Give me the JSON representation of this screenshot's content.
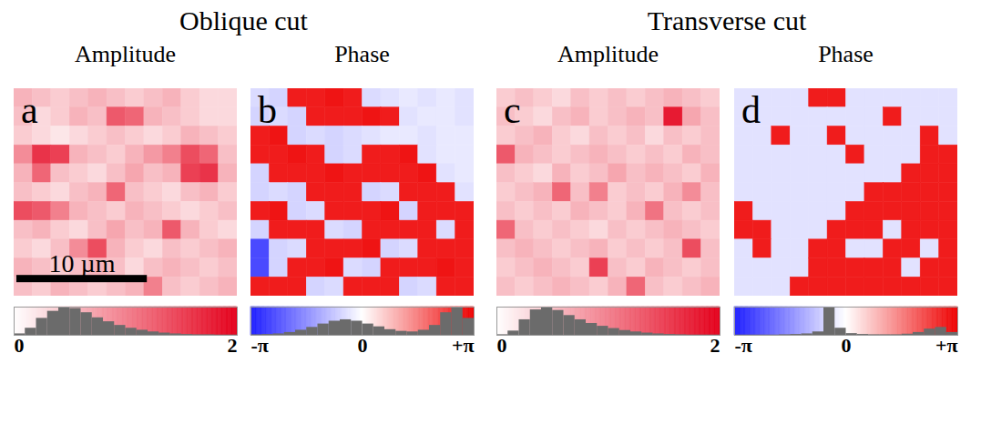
{
  "chart_data": [
    {
      "type": "heatmap",
      "group": "Oblique cut",
      "title": "Amplitude",
      "label": "a",
      "xlim": [
        0,
        17.1
      ],
      "ylim": [
        0,
        16.1
      ],
      "tick_labels": false,
      "scale_bar": {
        "value": 10,
        "label": "10 µm"
      },
      "cells": [
        [
          0.6,
          0.5,
          0.4,
          0.5,
          0.6,
          0.5,
          0.4,
          0.5,
          0.6,
          0.4,
          0.3,
          0.3
        ],
        [
          0.5,
          0.3,
          0.4,
          0.6,
          0.5,
          1.3,
          1.2,
          0.6,
          0.5,
          0.4,
          0.3,
          0.3
        ],
        [
          0.4,
          0.3,
          0.2,
          0.3,
          0.4,
          0.5,
          0.4,
          0.3,
          0.4,
          0.6,
          0.5,
          0.4
        ],
        [
          0.9,
          1.6,
          1.5,
          0.6,
          0.5,
          0.4,
          0.6,
          0.8,
          1.0,
          1.4,
          1.2,
          0.5
        ],
        [
          0.6,
          1.2,
          0.5,
          0.4,
          0.3,
          0.5,
          0.7,
          0.5,
          0.6,
          1.5,
          1.6,
          0.6
        ],
        [
          0.5,
          0.4,
          0.3,
          0.5,
          0.6,
          1.2,
          0.5,
          0.4,
          0.3,
          0.5,
          0.6,
          0.4
        ],
        [
          1.4,
          1.3,
          1.0,
          0.6,
          0.5,
          0.4,
          0.6,
          0.5,
          0.4,
          0.3,
          0.4,
          0.5
        ],
        [
          0.5,
          0.6,
          0.4,
          0.3,
          0.5,
          0.7,
          0.5,
          0.6,
          1.3,
          0.6,
          0.4,
          0.3
        ],
        [
          0.4,
          0.3,
          0.5,
          0.9,
          1.4,
          0.6,
          0.4,
          0.3,
          0.5,
          0.4,
          0.5,
          0.6
        ],
        [
          0.6,
          0.5,
          0.4,
          0.5,
          0.6,
          0.5,
          0.3,
          0.5,
          0.6,
          0.5,
          0.4,
          0.5
        ],
        [
          0.5,
          0.4,
          0.6,
          0.5,
          0.4,
          0.5,
          0.6,
          1.0,
          0.5,
          0.4,
          0.5,
          0.6
        ]
      ],
      "colorbar": {
        "range": [
          0,
          2
        ],
        "ticks": [
          0,
          2
        ],
        "bins": [
          0,
          0.1,
          0.2,
          0.3,
          0.4,
          0.5,
          0.6,
          0.7,
          0.8,
          0.9,
          1,
          1.1,
          1.2,
          1.3,
          1.4,
          1.5,
          1.6,
          1.7,
          1.8,
          1.9,
          2
        ],
        "counts": [
          5,
          25,
          60,
          85,
          100,
          95,
          80,
          62,
          48,
          35,
          25,
          18,
          12,
          8,
          5,
          3,
          2,
          2,
          1,
          1
        ]
      }
    },
    {
      "type": "heatmap",
      "group": "Oblique cut",
      "title": "Phase",
      "label": "b",
      "xlim": [
        0,
        17.1
      ],
      "ylim": [
        0,
        16.1
      ],
      "tick_labels": false,
      "cells": [
        [
          -0.5,
          -0.6,
          2.8,
          2.8,
          2.9,
          2.8,
          -0.5,
          -0.4,
          -0.3,
          -0.4,
          -0.3,
          -0.4
        ],
        [
          -0.6,
          -0.5,
          -0.6,
          2.8,
          2.8,
          2.8,
          2.9,
          2.8,
          -0.4,
          -0.3,
          -0.3,
          -0.4
        ],
        [
          2.8,
          2.9,
          -0.6,
          -0.5,
          -0.6,
          -0.5,
          -0.4,
          -0.3,
          -0.3,
          -0.4,
          -0.3,
          -0.3
        ],
        [
          2.8,
          2.8,
          2.9,
          2.8,
          -0.6,
          -0.5,
          2.8,
          2.8,
          2.9,
          -0.4,
          -0.3,
          -0.3
        ],
        [
          -0.6,
          2.8,
          2.8,
          2.8,
          2.9,
          2.8,
          2.8,
          2.8,
          2.8,
          2.9,
          -0.4,
          -0.3
        ],
        [
          -0.6,
          -0.5,
          -0.6,
          2.8,
          2.8,
          2.8,
          -0.6,
          -0.5,
          2.8,
          2.8,
          2.8,
          -0.4
        ],
        [
          2.8,
          2.9,
          -0.6,
          -0.5,
          2.8,
          2.8,
          2.8,
          2.9,
          -0.6,
          2.8,
          2.8,
          2.8
        ],
        [
          -0.6,
          2.8,
          2.8,
          2.8,
          -0.5,
          -0.6,
          2.8,
          2.8,
          2.8,
          2.8,
          -0.5,
          2.8
        ],
        [
          -2.5,
          -0.6,
          -0.5,
          2.8,
          2.8,
          2.8,
          2.9,
          -0.6,
          -0.5,
          2.8,
          2.8,
          2.8
        ],
        [
          -2.5,
          -0.6,
          2.8,
          2.8,
          2.9,
          -0.5,
          -0.6,
          2.8,
          2.8,
          2.8,
          2.9,
          2.8
        ],
        [
          2.8,
          2.8,
          2.8,
          -0.6,
          -0.5,
          2.8,
          2.8,
          2.8,
          -0.6,
          -0.5,
          2.8,
          2.8
        ]
      ],
      "colorbar": {
        "range": [
          -3.1416,
          3.1416
        ],
        "ticks": [
          {
            "value": -3.1416,
            "label": "-π"
          },
          0,
          {
            "value": 3.1416,
            "label": "+π"
          }
        ],
        "bins": [
          -3.1416,
          -2.8274,
          -2.5133,
          -2.1991,
          -1.885,
          -1.5708,
          -1.2566,
          -0.9425,
          -0.6283,
          -0.3142,
          0,
          0.3142,
          0.6283,
          0.9425,
          1.2566,
          1.5708,
          1.885,
          2.1991,
          2.5133,
          2.8274,
          3.1416
        ],
        "counts": [
          2,
          3,
          5,
          10,
          18,
          28,
          40,
          50,
          55,
          50,
          40,
          30,
          20,
          14,
          12,
          18,
          35,
          80,
          100,
          60
        ]
      }
    },
    {
      "type": "heatmap",
      "group": "Transverse cut",
      "title": "Amplitude",
      "label": "c",
      "xlim": [
        0,
        17.1
      ],
      "ylim": [
        0,
        16.1
      ],
      "tick_labels": false,
      "cells": [
        [
          0.4,
          0.5,
          0.4,
          0.3,
          0.5,
          0.4,
          0.5,
          0.4,
          0.5,
          0.6,
          0.5,
          0.4
        ],
        [
          0.5,
          0.4,
          0.3,
          0.5,
          0.6,
          0.4,
          0.5,
          0.6,
          0.5,
          1.8,
          0.7,
          0.5
        ],
        [
          0.4,
          0.5,
          0.6,
          0.4,
          0.3,
          0.5,
          0.4,
          0.5,
          0.3,
          0.5,
          0.4,
          0.5
        ],
        [
          1.3,
          0.6,
          0.5,
          0.4,
          0.5,
          0.6,
          0.5,
          0.4,
          0.5,
          0.4,
          0.6,
          0.5
        ],
        [
          0.5,
          0.4,
          0.3,
          0.6,
          0.4,
          0.5,
          0.7,
          0.5,
          0.6,
          0.5,
          0.4,
          0.6
        ],
        [
          0.4,
          0.5,
          0.6,
          1.2,
          0.5,
          1.0,
          0.4,
          0.5,
          0.4,
          0.6,
          0.9,
          0.5
        ],
        [
          0.5,
          0.4,
          0.5,
          0.4,
          0.6,
          0.5,
          0.4,
          0.6,
          1.1,
          0.5,
          0.4,
          0.5
        ],
        [
          1.2,
          0.5,
          0.4,
          0.5,
          0.4,
          0.3,
          0.5,
          0.4,
          0.5,
          0.6,
          0.5,
          0.4
        ],
        [
          0.5,
          0.6,
          0.5,
          0.4,
          0.5,
          0.6,
          0.4,
          0.5,
          0.4,
          0.5,
          1.4,
          0.5
        ],
        [
          0.4,
          0.5,
          0.6,
          0.5,
          0.4,
          1.5,
          0.5,
          0.4,
          0.6,
          0.5,
          0.4,
          0.5
        ],
        [
          0.5,
          0.4,
          0.5,
          0.6,
          0.5,
          0.4,
          0.6,
          1.2,
          0.5,
          0.4,
          0.5,
          0.6
        ]
      ],
      "colorbar": {
        "range": [
          0,
          2
        ],
        "ticks": [
          0,
          2
        ],
        "bins": [
          0,
          0.1,
          0.2,
          0.3,
          0.4,
          0.5,
          0.6,
          0.7,
          0.8,
          0.9,
          1,
          1.1,
          1.2,
          1.3,
          1.4,
          1.5,
          1.6,
          1.7,
          1.8,
          1.9,
          2
        ],
        "counts": [
          2,
          15,
          55,
          90,
          100,
          88,
          70,
          55,
          42,
          32,
          24,
          17,
          12,
          8,
          5,
          3,
          2,
          1,
          1,
          1
        ]
      }
    },
    {
      "type": "heatmap",
      "group": "Transverse cut",
      "title": "Phase",
      "label": "d",
      "xlim": [
        0,
        17.1
      ],
      "ylim": [
        0,
        16.1
      ],
      "tick_labels": false,
      "cells": [
        [
          -0.4,
          -0.4,
          -0.4,
          -0.4,
          2.8,
          2.8,
          -0.4,
          -0.4,
          -0.4,
          -0.4,
          -0.4,
          -0.4
        ],
        [
          -0.4,
          -0.4,
          -0.4,
          -0.4,
          -0.4,
          -0.4,
          -0.4,
          -0.4,
          2.8,
          -0.4,
          -0.4,
          -0.4
        ],
        [
          -0.4,
          -0.4,
          2.8,
          -0.4,
          -0.4,
          2.8,
          -0.4,
          -0.4,
          -0.4,
          -0.4,
          2.8,
          -0.4
        ],
        [
          -0.4,
          -0.4,
          -0.4,
          -0.4,
          -0.4,
          -0.4,
          2.8,
          -0.4,
          -0.4,
          -0.4,
          2.8,
          2.8
        ],
        [
          -0.4,
          -0.4,
          -0.4,
          -0.4,
          -0.4,
          -0.4,
          -0.4,
          -0.4,
          -0.4,
          2.8,
          2.8,
          2.8
        ],
        [
          -0.4,
          -0.4,
          -0.4,
          -0.4,
          -0.4,
          -0.4,
          -0.4,
          2.8,
          2.8,
          2.8,
          2.8,
          2.8
        ],
        [
          2.8,
          -0.4,
          -0.4,
          -0.4,
          -0.4,
          -0.4,
          2.8,
          2.8,
          2.8,
          2.8,
          2.8,
          2.8
        ],
        [
          2.8,
          2.8,
          -0.4,
          -0.4,
          -0.4,
          2.8,
          2.8,
          2.8,
          -0.4,
          2.8,
          2.8,
          2.8
        ],
        [
          -0.4,
          2.8,
          -0.4,
          -0.4,
          2.8,
          2.8,
          -0.4,
          -0.4,
          2.8,
          2.8,
          -0.4,
          2.8
        ],
        [
          -0.4,
          -0.4,
          -0.4,
          -0.4,
          2.8,
          2.8,
          2.8,
          2.8,
          2.8,
          -0.4,
          2.8,
          2.8
        ],
        [
          -0.4,
          -0.4,
          -0.4,
          2.8,
          2.8,
          2.8,
          2.8,
          2.8,
          2.8,
          2.8,
          2.8,
          2.8
        ]
      ],
      "colorbar": {
        "range": [
          -3.1416,
          3.1416
        ],
        "ticks": [
          {
            "value": -3.1416,
            "label": "-π"
          },
          0,
          {
            "value": 3.1416,
            "label": "+π"
          }
        ],
        "bins": [
          -3.1416,
          -2.8274,
          -2.5133,
          -2.1991,
          -1.885,
          -1.5708,
          -1.2566,
          -0.9425,
          -0.6283,
          -0.3142,
          0,
          0.3142,
          0.6283,
          0.9425,
          1.2566,
          1.5708,
          1.885,
          2.1991,
          2.5133,
          2.8274,
          3.1416
        ],
        "counts": [
          1,
          1,
          1,
          1,
          2,
          3,
          5,
          12,
          100,
          25,
          6,
          3,
          2,
          2,
          2,
          4,
          10,
          22,
          28,
          10
        ]
      }
    }
  ]
}
